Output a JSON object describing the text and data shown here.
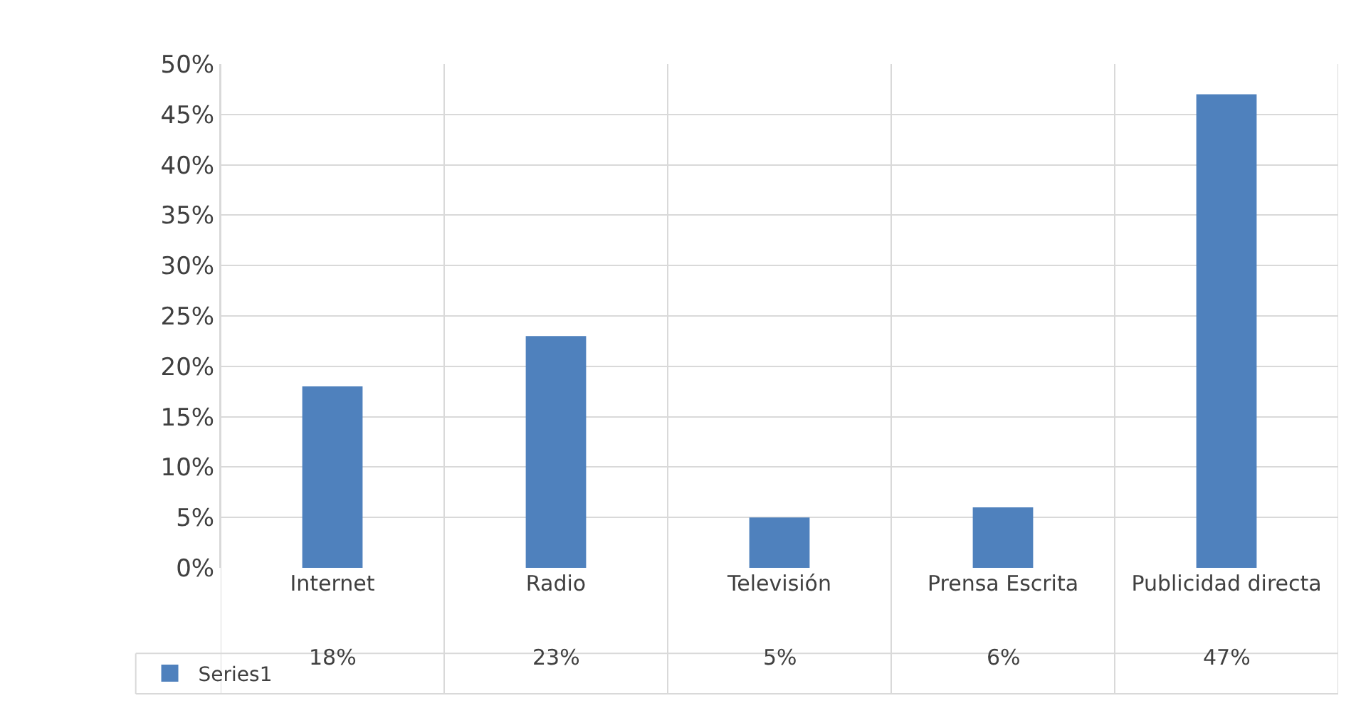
{
  "chart_data": {
    "type": "bar",
    "categories": [
      "Internet",
      "Radio",
      "Televisión",
      "Prensa Escrita",
      "Publicidad directa"
    ],
    "series": [
      {
        "name": "Series1",
        "color": "#4f81bd",
        "values": [
          18,
          23,
          5,
          6,
          47
        ],
        "value_labels": [
          "18%",
          "23%",
          "5%",
          "6%",
          "47%"
        ]
      }
    ],
    "ylim": [
      0,
      50
    ],
    "yticks": [
      {
        "value": 0,
        "label": "0%"
      },
      {
        "value": 5,
        "label": "5%"
      },
      {
        "value": 10,
        "label": "10%"
      },
      {
        "value": 15,
        "label": "15%"
      },
      {
        "value": 20,
        "label": "20%"
      },
      {
        "value": 25,
        "label": "25%"
      },
      {
        "value": 30,
        "label": "30%"
      },
      {
        "value": 35,
        "label": "35%"
      },
      {
        "value": 40,
        "label": "40%"
      },
      {
        "value": 45,
        "label": "45%"
      },
      {
        "value": 50,
        "label": "50%"
      }
    ],
    "grid": true,
    "legend": "bottom left"
  }
}
